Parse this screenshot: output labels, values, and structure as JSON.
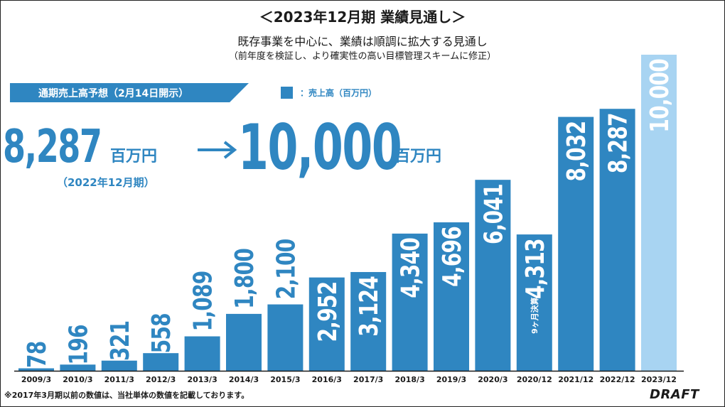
{
  "header": {
    "title": "＜2023年12月期 業績見通し＞",
    "subtitle": "既存事業を中心に、業績は順調に拡大する見通し",
    "note": "（前年度を検証し、より確実性の高い目標管理スキームに修正）"
  },
  "banner": {
    "label": "通期売上高予想（2月14日開示）"
  },
  "legend": {
    "label": "：売上高（百万円）"
  },
  "highlight": {
    "current_value": "8,287",
    "current_unit": "百万円",
    "current_period": "（2022年12月期）",
    "forecast_value": "10,000",
    "forecast_unit": "百万円"
  },
  "footnote": "※2017年3月期以前の数値は、当社単体の数値を記載しております。",
  "logo": "DRAFT",
  "colors": {
    "bar": "#2f86c1",
    "forecast": "#a8d4f2",
    "axis": "#1a1a1a"
  },
  "chart_data": {
    "type": "bar",
    "categories": [
      "2009/3",
      "2010/3",
      "2011/3",
      "2012/3",
      "2013/3",
      "2014/3",
      "2015/3",
      "2016/3",
      "2017/3",
      "2018/3",
      "2019/3",
      "2020/3",
      "2020/12",
      "2021/12",
      "2022/12",
      "2023/12"
    ],
    "values": [
      78,
      196,
      321,
      558,
      1089,
      1800,
      2100,
      2952,
      3124,
      4340,
      4696,
      6041,
      4313,
      8032,
      8287,
      10000
    ],
    "data_labels": [
      "78",
      "196",
      "321",
      "558",
      "1,089",
      "1,800",
      "2,100",
      "2,952",
      "3,124",
      "4,340",
      "4,696",
      "6,041",
      "4,313",
      "8,032",
      "8,287",
      "10,000"
    ],
    "annotations": [
      {
        "category": "2020/12",
        "text": "9ヶ月決算"
      }
    ],
    "forecast_category": "2023/12",
    "ylim": [
      0,
      10000
    ],
    "grid": false,
    "legend_position": "top"
  }
}
